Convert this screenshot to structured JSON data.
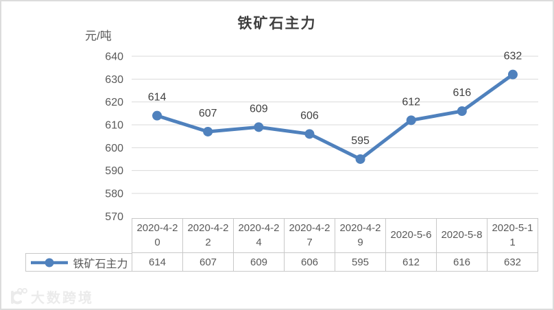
{
  "title": "铁矿石主力",
  "y_unit_label": "元/吨",
  "legend": {
    "label": "铁矿石主力"
  },
  "watermark": {
    "text": "大数跨境"
  },
  "chart_data": {
    "type": "line",
    "title": "铁矿石主力",
    "xlabel": "",
    "ylabel": "元/吨",
    "categories": [
      "2020-4-20",
      "2020-4-22",
      "2020-4-24",
      "2020-4-27",
      "2020-4-29",
      "2020-5-6",
      "2020-5-8",
      "2020-5-11"
    ],
    "series": [
      {
        "name": "铁矿石主力",
        "values": [
          614,
          607,
          609,
          606,
          595,
          612,
          616,
          632
        ]
      }
    ],
    "data_labels": true,
    "ylim": [
      570,
      640
    ],
    "yticks": [
      570,
      580,
      590,
      600,
      610,
      620,
      630,
      640
    ],
    "grid": true,
    "legend_position": "bottom-table",
    "colors": {
      "series": "#4f81bd",
      "gridline": "#d9d9d9",
      "table_border": "#c8c8c8",
      "tick_text": "#595959",
      "label_text": "#404040",
      "title_text": "#3f3f3f"
    }
  }
}
